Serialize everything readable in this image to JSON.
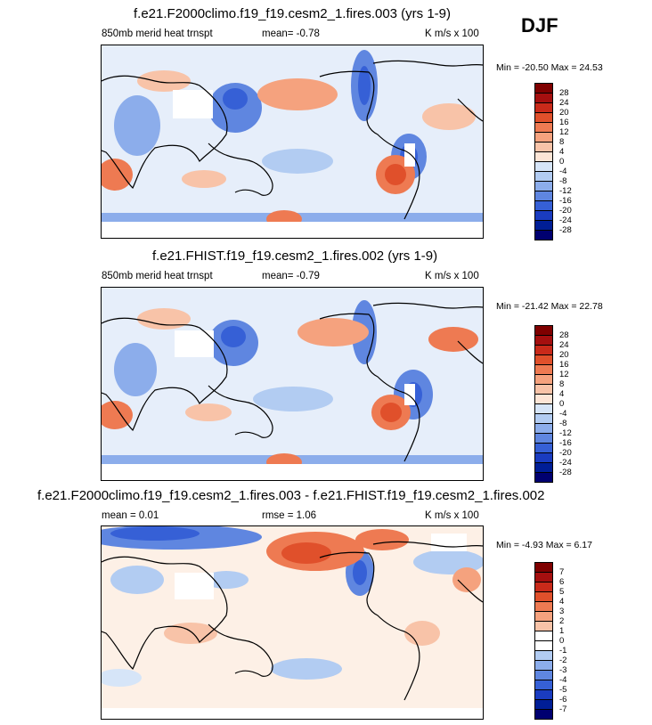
{
  "season": "DJF",
  "panels": [
    {
      "title": "f.e21.F2000climo.f19_f19.cesm2_1.fires.003 (yrs 1-9)",
      "left_label": "850mb merid heat trnspt",
      "mid_label": "mean=  -0.78",
      "units": "K m/s x 100",
      "minmax": "Min = -20.50 Max =  24.53",
      "levels": [
        "28",
        "24",
        "20",
        "16",
        "12",
        "8",
        "4",
        "0",
        "-4",
        "-8",
        "-12",
        "-16",
        "-20",
        "-24",
        "-28"
      ]
    },
    {
      "title": "f.e21.FHIST.f19_f19.cesm2_1.fires.002 (yrs 1-9)",
      "left_label": "850mb merid heat trnspt",
      "mid_label": "mean=  -0.79",
      "units": "K m/s x 100",
      "minmax": "Min = -21.42 Max =  22.78",
      "levels": [
        "28",
        "24",
        "20",
        "16",
        "12",
        "8",
        "4",
        "0",
        "-4",
        "-8",
        "-12",
        "-16",
        "-20",
        "-24",
        "-28"
      ]
    },
    {
      "title": "f.e21.F2000climo.f19_f19.cesm2_1.fires.003 - f.e21.FHIST.f19_f19.cesm2_1.fires.002",
      "left_label": "mean =  0.01",
      "mid_label": "rmse =   1.06",
      "units": "K m/s x 100",
      "minmax": "Min =  -4.93 Max =   6.17",
      "levels": [
        "7",
        "6",
        "5",
        "4",
        "3",
        "2",
        "1",
        "0",
        "-1",
        "-2",
        "-3",
        "-4",
        "-5",
        "-6",
        "-7"
      ]
    }
  ],
  "colors": {
    "scale": [
      "#7f0000",
      "#a50f0f",
      "#c92a1a",
      "#e0502b",
      "#ee7a52",
      "#f5a27e",
      "#f8c3a8",
      "#fde5d6",
      "#ffffff",
      "#d6e5f8",
      "#b2ccf2",
      "#8cadeb",
      "#5f86e0",
      "#3660d6",
      "#1a3cc0",
      "#001e96",
      "#000070"
    ]
  }
}
